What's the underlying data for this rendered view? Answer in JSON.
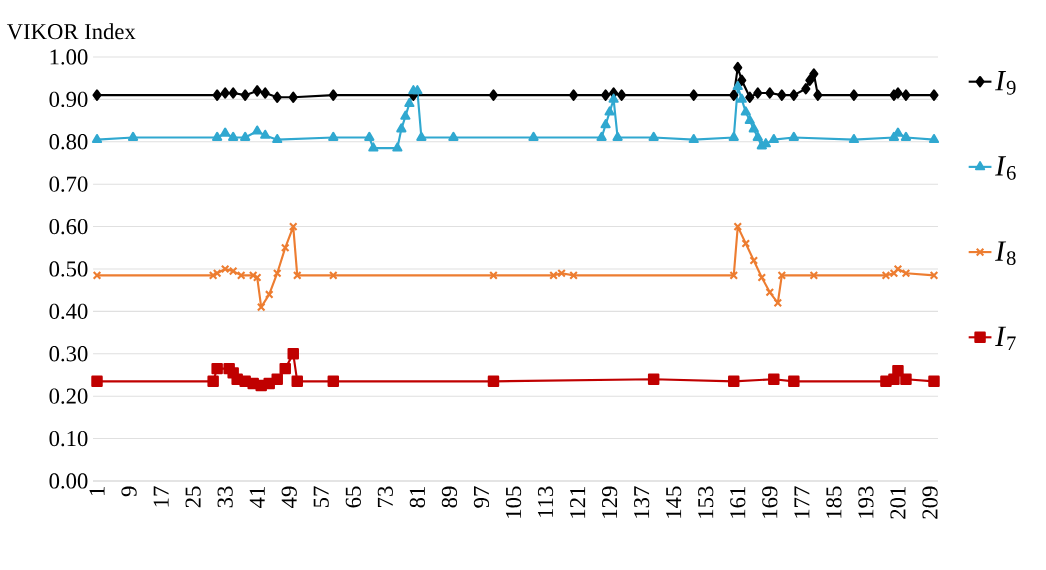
{
  "chart_data": {
    "type": "line",
    "ylabel": "VIKOR Index",
    "xlim": [
      0,
      211
    ],
    "ylim": [
      0,
      1
    ],
    "xticks": [
      1,
      9,
      17,
      25,
      33,
      41,
      49,
      57,
      65,
      73,
      81,
      89,
      97,
      105,
      113,
      121,
      129,
      137,
      145,
      153,
      161,
      169,
      177,
      185,
      193,
      201,
      209
    ],
    "yticks": [
      {
        "value": 0,
        "label": "0.00"
      },
      {
        "value": 0.1,
        "label": "0.10"
      },
      {
        "value": 0.2,
        "label": "0.20"
      },
      {
        "value": 0.3,
        "label": "0.30"
      },
      {
        "value": 0.4,
        "label": "0.40"
      },
      {
        "value": 0.5,
        "label": "0.50"
      },
      {
        "value": 0.6,
        "label": "0.60"
      },
      {
        "value": 0.7,
        "label": "0.70"
      },
      {
        "value": 0.8,
        "label": "0.80"
      },
      {
        "value": 0.9,
        "label": "0.90"
      },
      {
        "value": 1,
        "label": "1.00"
      }
    ],
    "grid": "y",
    "legend": "right",
    "series": [
      {
        "name": "*I*$_{9}$",
        "color": "#000000",
        "marker": "diamond",
        "x": [
          1,
          31,
          33,
          35,
          38,
          41,
          43,
          46,
          50,
          60,
          80,
          100,
          120,
          128,
          130,
          132,
          150,
          160,
          161,
          162,
          164,
          166,
          169,
          172,
          175,
          178,
          179,
          180,
          181,
          190,
          200,
          201,
          203,
          210
        ],
        "values": [
          0.91,
          0.91,
          0.915,
          0.915,
          0.91,
          0.92,
          0.915,
          0.905,
          0.905,
          0.91,
          0.91,
          0.91,
          0.91,
          0.91,
          0.915,
          0.91,
          0.91,
          0.91,
          0.975,
          0.945,
          0.905,
          0.915,
          0.915,
          0.91,
          0.91,
          0.925,
          0.945,
          0.96,
          0.91,
          0.91,
          0.91,
          0.915,
          0.91,
          0.91
        ]
      },
      {
        "name": "*I*$_{6}$",
        "color": "#30a8d0",
        "marker": "triangle",
        "x": [
          1,
          10,
          31,
          33,
          35,
          38,
          41,
          43,
          46,
          60,
          69,
          70,
          76,
          77,
          78,
          79,
          80,
          81,
          82,
          90,
          110,
          127,
          128,
          129,
          130,
          131,
          140,
          150,
          160,
          161,
          162,
          163,
          164,
          165,
          166,
          167,
          168,
          170,
          175,
          190,
          200,
          201,
          203,
          210
        ],
        "values": [
          0.805,
          0.81,
          0.81,
          0.82,
          0.81,
          0.81,
          0.825,
          0.815,
          0.805,
          0.81,
          0.81,
          0.785,
          0.785,
          0.83,
          0.86,
          0.89,
          0.92,
          0.92,
          0.81,
          0.81,
          0.81,
          0.81,
          0.84,
          0.87,
          0.9,
          0.81,
          0.81,
          0.805,
          0.81,
          0.93,
          0.9,
          0.87,
          0.85,
          0.83,
          0.81,
          0.79,
          0.795,
          0.805,
          0.81,
          0.805,
          0.81,
          0.82,
          0.81,
          0.805
        ]
      },
      {
        "name": "*I*$_{8}$",
        "color": "#ed7d31",
        "marker": "cross",
        "x": [
          1,
          30,
          31,
          33,
          35,
          37,
          40,
          41,
          42,
          44,
          46,
          48,
          50,
          51,
          60,
          100,
          115,
          117,
          120,
          160,
          161,
          163,
          165,
          167,
          169,
          171,
          172,
          180,
          198,
          200,
          201,
          203,
          210
        ],
        "values": [
          0.485,
          0.485,
          0.49,
          0.5,
          0.495,
          0.485,
          0.485,
          0.48,
          0.41,
          0.44,
          0.49,
          0.55,
          0.6,
          0.485,
          0.485,
          0.485,
          0.485,
          0.49,
          0.485,
          0.485,
          0.6,
          0.56,
          0.52,
          0.48,
          0.445,
          0.42,
          0.485,
          0.485,
          0.485,
          0.49,
          0.5,
          0.49,
          0.485
        ]
      },
      {
        "name": "*I*$_{7}$",
        "color": "#c00000",
        "marker": "square",
        "x": [
          1,
          30,
          31,
          34,
          35,
          36,
          38,
          40,
          42,
          44,
          46,
          48,
          50,
          51,
          60,
          100,
          140,
          160,
          170,
          175,
          198,
          200,
          201,
          203,
          210
        ],
        "values": [
          0.235,
          0.235,
          0.265,
          0.265,
          0.255,
          0.24,
          0.235,
          0.23,
          0.225,
          0.23,
          0.24,
          0.265,
          0.3,
          0.235,
          0.235,
          0.235,
          0.24,
          0.235,
          0.24,
          0.235,
          0.235,
          0.24,
          0.26,
          0.24,
          0.235
        ]
      }
    ]
  }
}
